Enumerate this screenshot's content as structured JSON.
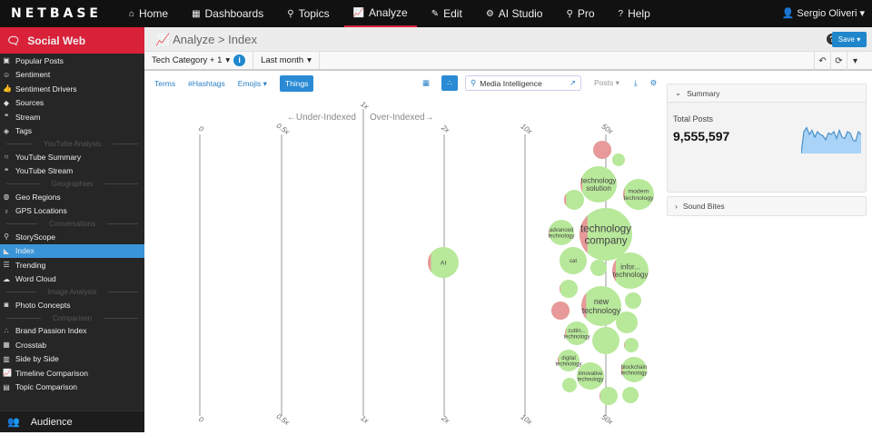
{
  "brand": "NETBASE",
  "nav": {
    "items": [
      {
        "label": "Home",
        "icon": "home-icon",
        "glyph": "⌂"
      },
      {
        "label": "Dashboards",
        "icon": "grid-icon",
        "glyph": "▦"
      },
      {
        "label": "Topics",
        "icon": "topics-icon",
        "glyph": "⚲"
      },
      {
        "label": "Analyze",
        "icon": "line-chart-icon",
        "glyph": "📈",
        "active": true
      },
      {
        "label": "Edit",
        "icon": "edit-icon",
        "glyph": "✎"
      },
      {
        "label": "AI Studio",
        "icon": "ai-icon",
        "glyph": "⚙"
      },
      {
        "label": "Pro",
        "icon": "search-icon",
        "glyph": "⚲"
      },
      {
        "label": "Help",
        "icon": "help-icon",
        "glyph": "?"
      }
    ],
    "user": "Sergio Oliveri"
  },
  "sidebar": {
    "header": "Social Web",
    "footer": "Audience",
    "items": [
      {
        "type": "item",
        "label": "Popular Posts",
        "glyph": "▣"
      },
      {
        "type": "item",
        "label": "Sentiment",
        "glyph": "☺"
      },
      {
        "type": "item",
        "label": "Sentiment Drivers",
        "glyph": "👍"
      },
      {
        "type": "item",
        "label": "Sources",
        "glyph": "◆"
      },
      {
        "type": "item",
        "label": "Stream",
        "glyph": "❝"
      },
      {
        "type": "item",
        "label": "Tags",
        "glyph": "◈"
      },
      {
        "type": "section",
        "label": "YouTube Analysis"
      },
      {
        "type": "item",
        "label": "YouTube Summary",
        "glyph": "○"
      },
      {
        "type": "item",
        "label": "YouTube Stream",
        "glyph": "❝"
      },
      {
        "type": "section",
        "label": "Geographies"
      },
      {
        "type": "item",
        "label": "Geo Regions",
        "glyph": "◍"
      },
      {
        "type": "item",
        "label": "GPS Locations",
        "glyph": "♁"
      },
      {
        "type": "section",
        "label": "Conversations"
      },
      {
        "type": "item",
        "label": "StoryScope",
        "glyph": "⚲"
      },
      {
        "type": "item",
        "label": "Index",
        "glyph": "◣",
        "active": true
      },
      {
        "type": "item",
        "label": "Trending",
        "glyph": "☰"
      },
      {
        "type": "item",
        "label": "Word Cloud",
        "glyph": "☁"
      },
      {
        "type": "section",
        "label": "Image Analysis"
      },
      {
        "type": "item",
        "label": "Photo Concepts",
        "glyph": "◙"
      },
      {
        "type": "section",
        "label": "Comparison"
      },
      {
        "type": "item",
        "label": "Brand Passion Index",
        "glyph": "∴"
      },
      {
        "type": "item",
        "label": "Crosstab",
        "glyph": "▦"
      },
      {
        "type": "item",
        "label": "Side by Side",
        "glyph": "▥"
      },
      {
        "type": "item",
        "label": "Timeline Comparison",
        "glyph": "📈"
      },
      {
        "type": "item",
        "label": "Topic Comparison",
        "glyph": "▤"
      }
    ]
  },
  "header": {
    "section": "Analyze",
    "page": "Index",
    "save": "Save ▾"
  },
  "filters": {
    "topic": "Tech Category + 1",
    "date": "Last month"
  },
  "tabs": [
    "Terms",
    "#Hashtags",
    "Emojis ▾",
    "Things"
  ],
  "search": {
    "value": "Media Intelligence"
  },
  "posts_dropdown": "Posts ▾",
  "summary": {
    "title": "Summary",
    "total_label": "Total Posts",
    "total": "9,555,597",
    "sparkline": [
      0,
      0.8,
      0.95,
      0.7,
      0.85,
      0.6,
      0.8,
      0.7,
      0.65,
      0.5,
      0.75,
      0.7,
      0.8,
      0.55,
      0.85,
      0.6,
      0.55,
      0.8,
      0.75,
      0.5,
      0.45,
      0.8,
      0.7
    ]
  },
  "sound_bites": {
    "title": "Sound Bites"
  },
  "index_chart": {
    "under_label": "←Under-Indexed",
    "over_label": "Over-Indexed→",
    "ticks": [
      "0",
      "0.5x",
      "1x",
      "2x",
      "10x",
      "50x"
    ],
    "colors": {
      "positive": "#b8e89a",
      "negative": "#e8999a",
      "axis": "#888"
    },
    "bubbles": [
      {
        "label": "",
        "neg": 1
      },
      {
        "label": "",
        "neg": 0
      },
      {
        "label": "technology solution",
        "neg": 0.05
      },
      {
        "label": "modern technology",
        "neg": 0.05
      },
      {
        "label": "",
        "neg": 0.1
      },
      {
        "label": "technology company",
        "neg": 0.15
      },
      {
        "label": "advanced technology",
        "neg": 0.03
      },
      {
        "label": "cat",
        "neg": 0
      },
      {
        "label": "",
        "neg": 0
      },
      {
        "label": "infor... technology",
        "neg": 0.1
      },
      {
        "label": "",
        "neg": 0.05
      },
      {
        "label": "new technology",
        "neg": 0.12
      },
      {
        "label": "",
        "neg": 0
      },
      {
        "label": "",
        "neg": 1
      },
      {
        "label": "",
        "neg": 0
      },
      {
        "label": "cuttin... technology",
        "neg": 0.05
      },
      {
        "label": "",
        "neg": 0
      },
      {
        "label": "",
        "neg": 0.05
      },
      {
        "label": "digital technology",
        "neg": 0.05
      },
      {
        "label": "innovative technology",
        "neg": 0
      },
      {
        "label": "blockchain technology",
        "neg": 0.05
      },
      {
        "label": "",
        "neg": 0
      },
      {
        "label": "",
        "neg": 0.05
      },
      {
        "label": "",
        "neg": 0
      },
      {
        "label": "AI",
        "neg": 0.1
      }
    ]
  }
}
